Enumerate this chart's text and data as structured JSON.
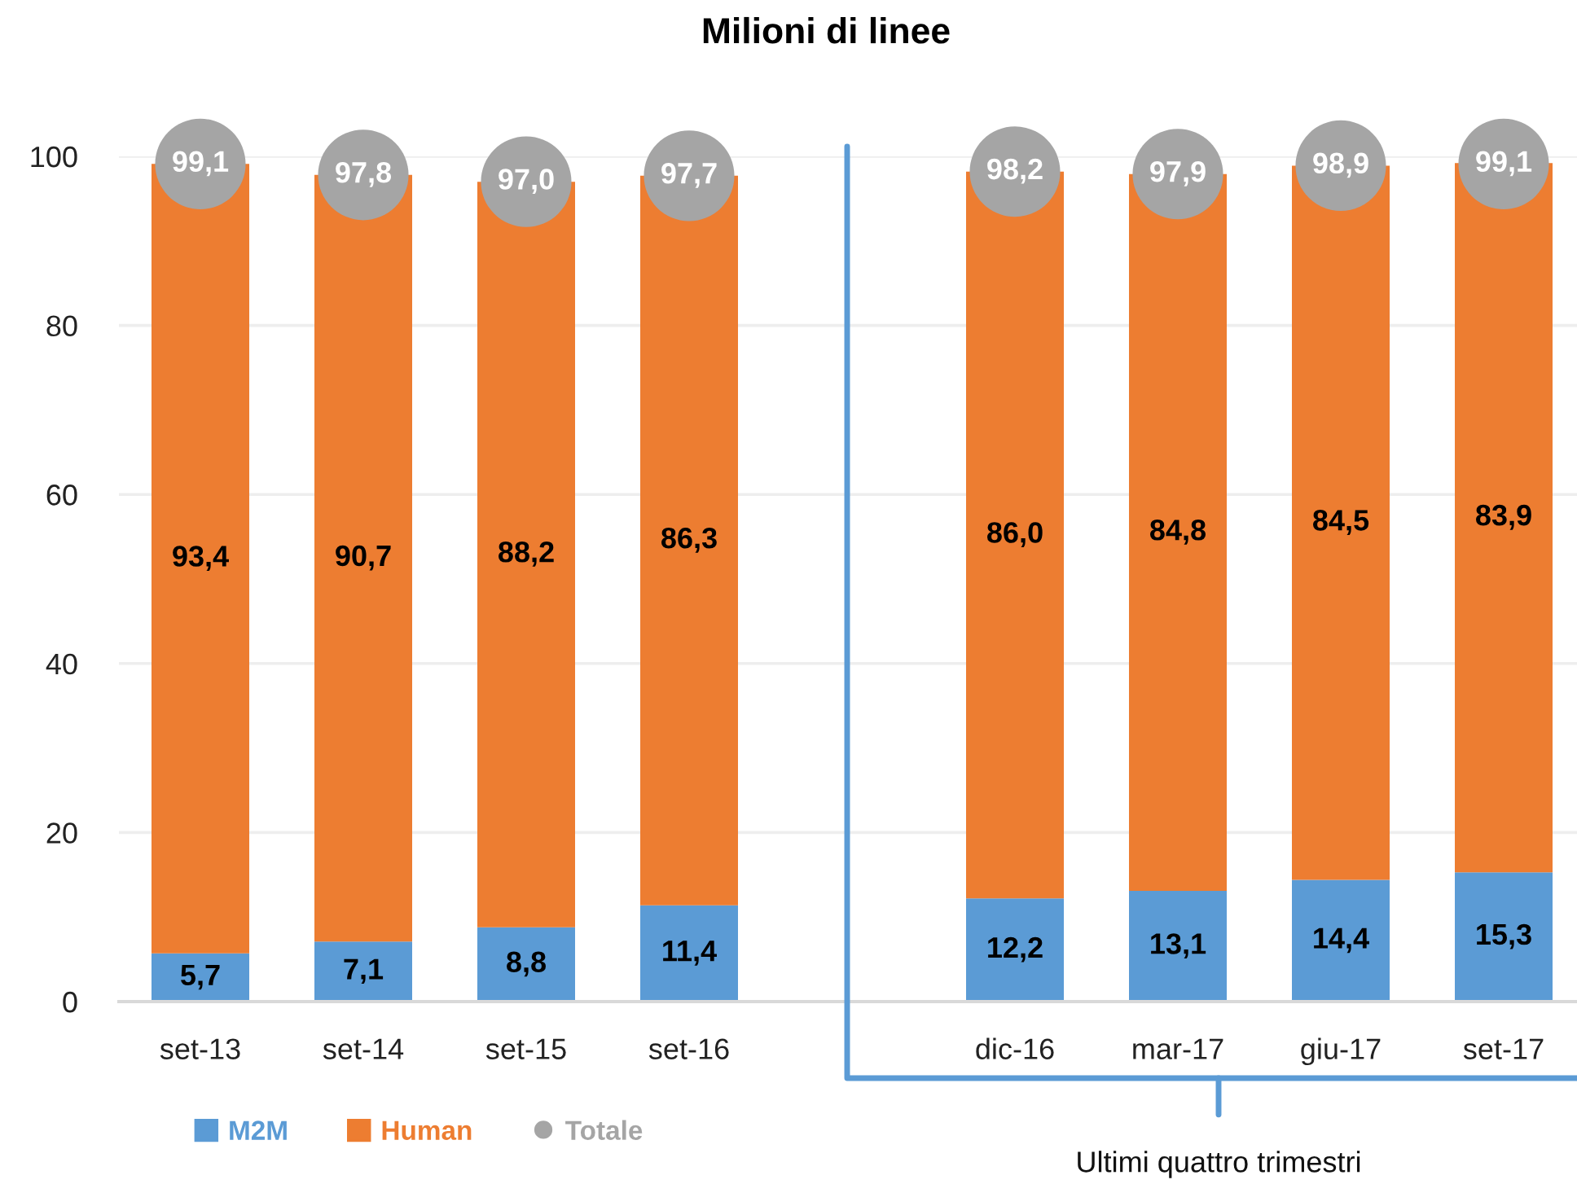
{
  "chart_data": {
    "type": "bar",
    "title": "Milioni di linee",
    "stacked": true,
    "categories": [
      "set-13",
      "set-14",
      "set-15",
      "set-16",
      null,
      "dic-16",
      "mar-17",
      "giu-17",
      "set-17"
    ],
    "series": [
      {
        "name": "M2M",
        "color": "#5b9bd5",
        "values": [
          5.7,
          7.1,
          8.8,
          11.4,
          null,
          12.2,
          13.1,
          14.4,
          15.3
        ],
        "value_labels": [
          "5,7",
          "7,1",
          "8,8",
          "11,4",
          null,
          "12,2",
          "13,1",
          "14,4",
          "15,3"
        ]
      },
      {
        "name": "Human",
        "color": "#ed7d31",
        "values": [
          93.4,
          90.7,
          88.2,
          86.3,
          null,
          86.0,
          84.8,
          84.5,
          83.9
        ],
        "value_labels": [
          "93,4",
          "90,7",
          "88,2",
          "86,3",
          null,
          "86,0",
          "84,8",
          "84,5",
          "83,9"
        ]
      },
      {
        "name": "Totale",
        "type": "scatter",
        "marker": "circle",
        "color": "#a5a5a5",
        "values": [
          99.1,
          97.8,
          97.0,
          97.7,
          null,
          98.2,
          97.9,
          98.9,
          99.1
        ],
        "value_labels": [
          "99,1",
          "97,8",
          "97,0",
          "97,7",
          null,
          "98,2",
          "97,9",
          "98,9",
          "99,1"
        ]
      }
    ],
    "ylim": [
      0,
      100
    ],
    "yticks": [
      0,
      20,
      40,
      60,
      80,
      100
    ],
    "grid": "y",
    "legend": "bottom",
    "annotations": [
      "Ultimi quattro trimestri"
    ]
  }
}
